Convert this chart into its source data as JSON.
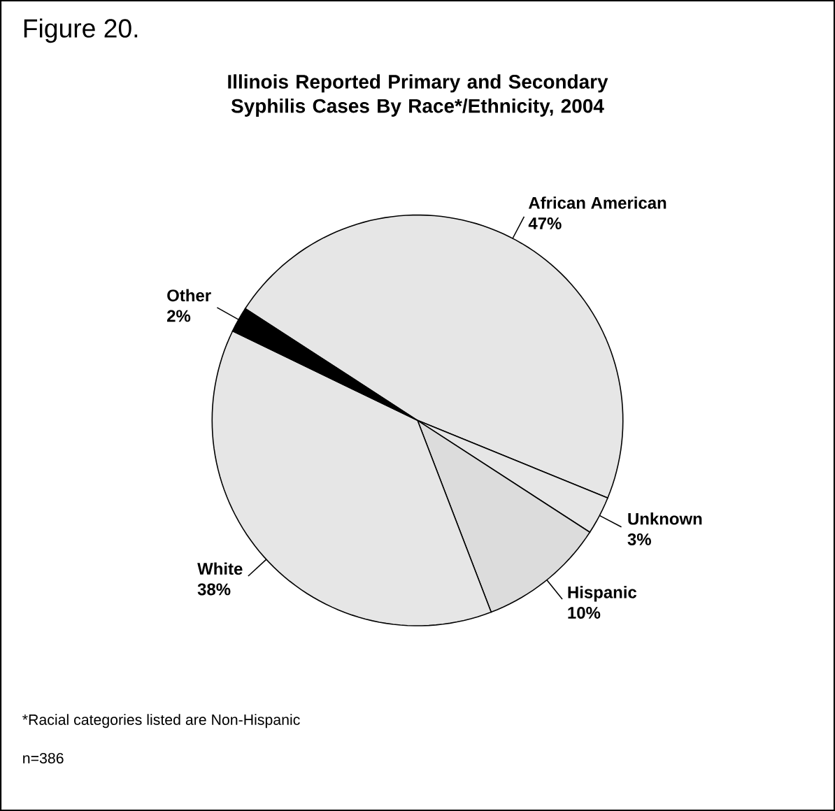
{
  "chart_data": {
    "type": "pie",
    "title": "Figure 20.",
    "subtitle": "Illinois Reported Primary and Secondary Syphilis Cases By Race*/Ethnicity, 2004",
    "categories": [
      "African American",
      "Unknown",
      "Hispanic",
      "White",
      "Other"
    ],
    "values": [
      47,
      3,
      10,
      38,
      2
    ],
    "value_labels": [
      "47%",
      "3%",
      "10%",
      "38%",
      "2%"
    ],
    "colors": [
      "#e6e6e6",
      "#e6e6e6",
      "#dcdcdc",
      "#e6e6e6",
      "#000000"
    ],
    "annotations": [
      "*Racial categories listed are Non-Hispanic",
      "n=386"
    ]
  }
}
